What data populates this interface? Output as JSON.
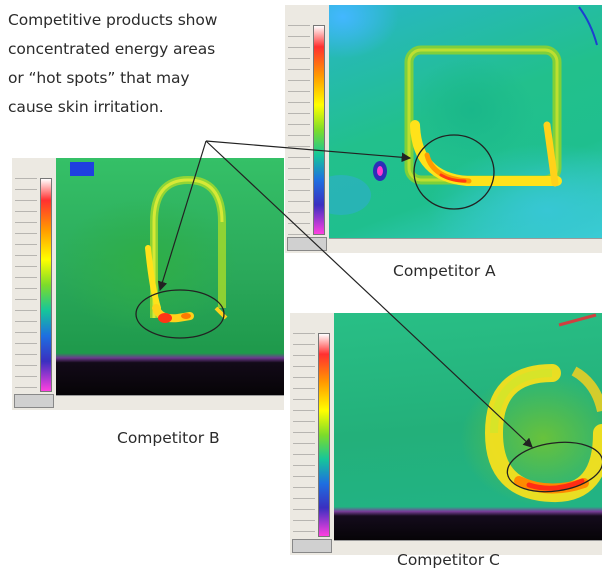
{
  "intro": {
    "line1": "Competitive products show",
    "line2": "concentrated energy areas",
    "line3": "or “hot spots” that may",
    "line4": "cause skin irritation."
  },
  "panels": {
    "a": {
      "caption": "Competitor A"
    },
    "b": {
      "caption": "Competitor B"
    },
    "c": {
      "caption": "Competitor C"
    }
  },
  "colors": {
    "hot": "#ff2a1a",
    "warm": "#ffd21a",
    "cool_green": "#22c08c",
    "cold_blue": "#1e6fe0",
    "annotation": "#222222"
  }
}
